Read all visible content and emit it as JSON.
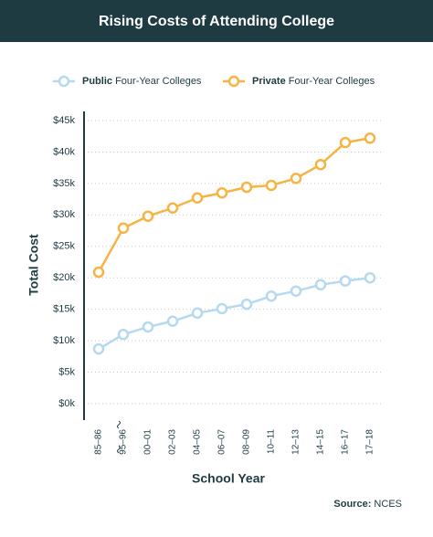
{
  "chart_data": {
    "type": "line",
    "title": "Rising Costs of Attending College",
    "x_label": "School Year",
    "y_label": "Total Cost",
    "source": "Source: NCES",
    "categories": [
      "85–86",
      "95–96",
      "00–01",
      "02–03",
      "04–05",
      "06–07",
      "08–09",
      "10–11",
      "12–13",
      "14–15",
      "16–17",
      "17–18"
    ],
    "series": [
      {
        "name": "Public Four-Year Colleges",
        "color": "#b5d9ee",
        "values": [
          8700,
          11000,
          12200,
          13100,
          14400,
          15100,
          15800,
          17100,
          17900,
          18900,
          19500,
          20000
        ]
      },
      {
        "name": "Private Four-Year Colleges",
        "color": "#f5b443",
        "values": [
          20900,
          27900,
          29800,
          31100,
          32700,
          33500,
          34400,
          34700,
          35800,
          38000,
          41500,
          42200
        ]
      }
    ],
    "ylim": [
      0,
      45000
    ],
    "yticks": [
      {
        "value": 0,
        "label": "$0k"
      },
      {
        "value": 5000,
        "label": "$5k"
      },
      {
        "value": 10000,
        "label": "$10k"
      },
      {
        "value": 15000,
        "label": "$15k"
      },
      {
        "value": 20000,
        "label": "$20k"
      },
      {
        "value": 25000,
        "label": "$25k"
      },
      {
        "value": 30000,
        "label": "$30k"
      },
      {
        "value": 35000,
        "label": "$35k"
      },
      {
        "value": 40000,
        "label": "$40k"
      },
      {
        "value": 45000,
        "label": "$45k"
      }
    ],
    "grid": true
  }
}
